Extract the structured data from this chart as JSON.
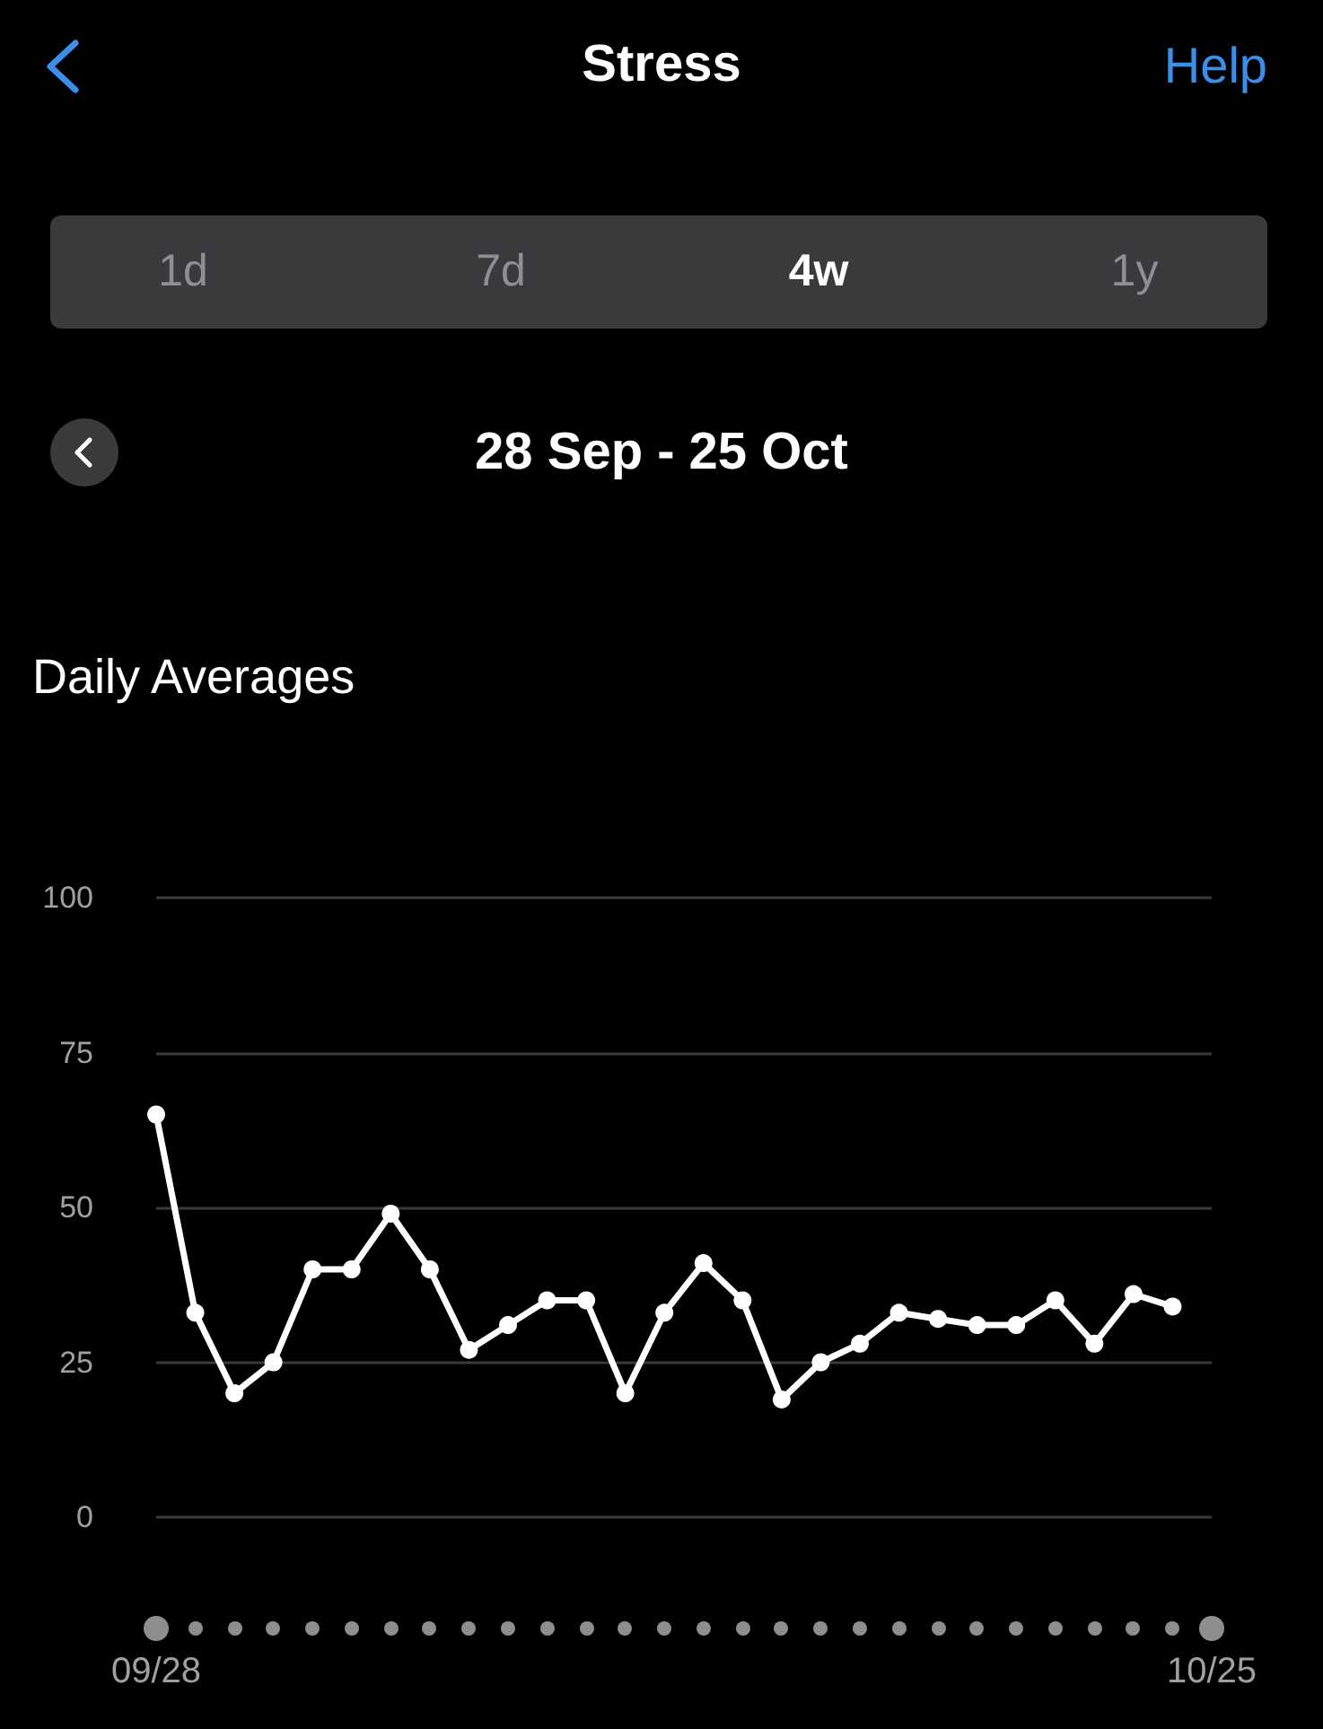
{
  "chart_data": {
    "type": "line",
    "title": "Stress",
    "subtitle": "28 Sep - 25 Oct",
    "ylabel": "Daily Averages",
    "annotations": [
      "Help",
      "1d",
      "7d",
      "4w",
      "1y"
    ],
    "categories": [
      "09/28",
      null,
      null,
      null,
      null,
      null,
      null,
      null,
      null,
      null,
      null,
      null,
      null,
      null,
      null,
      null,
      null,
      null,
      null,
      null,
      null,
      null,
      null,
      null,
      null,
      null,
      null,
      "10/25"
    ],
    "series": [
      {
        "color": "#ffffff",
        "values": [
          65,
          33,
          20,
          25,
          40,
          40,
          49,
          40,
          27,
          31,
          35,
          35,
          20,
          33,
          41,
          35,
          19,
          25,
          28,
          33,
          32,
          31,
          31,
          35,
          28,
          36,
          34,
          null
        ]
      }
    ],
    "ylim": [
      0,
      100
    ],
    "yticks": [
      0,
      25,
      50,
      75,
      100
    ],
    "grid": "y",
    "marker": "circle",
    "line_style": "solid"
  }
}
